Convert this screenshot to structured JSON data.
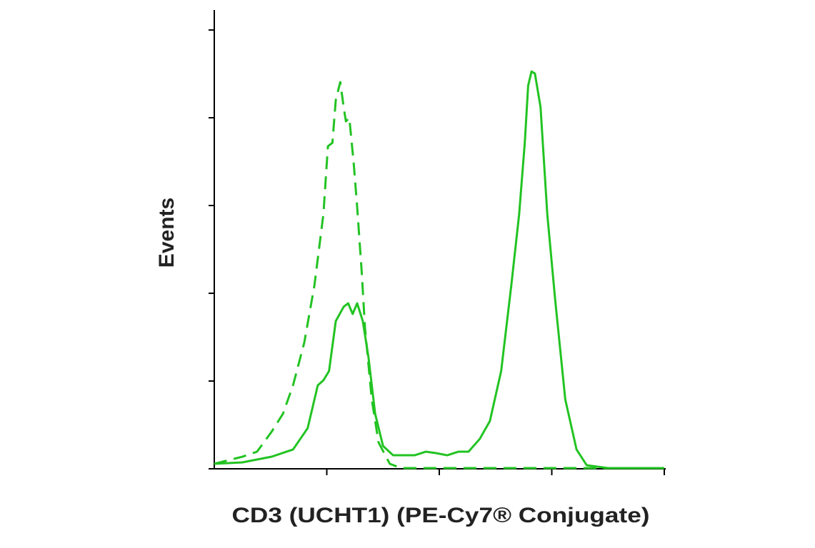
{
  "chart_data": {
    "type": "line",
    "xlabel": "CD3 (UCHT1) (PE-Cy7® Conjugate)",
    "ylabel": "Events",
    "xlim": [
      1,
      5
    ],
    "xticks": [
      2,
      3,
      4,
      5
    ],
    "ylim": [
      0,
      522
    ],
    "yticks": [
      0,
      100,
      200,
      300,
      400,
      500
    ],
    "series": [
      {
        "color": "#22c322",
        "dash": false,
        "x": [
          1.0,
          1.25,
          1.51,
          1.7,
          1.83,
          1.92,
          1.97,
          2.02,
          2.08,
          2.15,
          2.19,
          2.23,
          2.27,
          2.32,
          2.37,
          2.43,
          2.5,
          2.59,
          2.78,
          2.88,
          2.97,
          3.07,
          3.17,
          3.26,
          3.36,
          3.45,
          3.55,
          3.64,
          3.71,
          3.76,
          3.79,
          3.82,
          3.85,
          3.9,
          3.96,
          4.03,
          4.12,
          4.22,
          4.31,
          4.5,
          5.0
        ],
        "values": [
          5.7,
          7.3,
          13.8,
          22.0,
          46.3,
          95.1,
          100.8,
          111.4,
          168.3,
          184.6,
          188.6,
          176.4,
          188.6,
          168.3,
          127.6,
          62.6,
          26.0,
          15.4,
          15.4,
          19.5,
          17.9,
          15.4,
          19.5,
          19.5,
          34.1,
          54.5,
          111.4,
          208.9,
          290.2,
          371.5,
          436.6,
          452.8,
          450.4,
          412.2,
          290.2,
          192.7,
          78.9,
          22.0,
          4.1,
          0.8,
          0.8
        ]
      },
      {
        "color": "#22c322",
        "dash": true,
        "x": [
          1.0,
          1.25,
          1.38,
          1.51,
          1.61,
          1.7,
          1.8,
          1.89,
          1.97,
          2.01,
          2.05,
          2.08,
          2.12,
          2.15,
          2.17,
          2.2,
          2.24,
          2.27,
          2.31,
          2.34,
          2.37,
          2.4,
          2.46,
          2.56,
          2.66,
          5.0
        ],
        "values": [
          5.7,
          13.8,
          19.5,
          42.3,
          62.6,
          95.1,
          143.9,
          208.9,
          290.2,
          367.5,
          371.5,
          420.3,
          440.7,
          412.2,
          395.9,
          400.0,
          347.2,
          298.4,
          225.2,
          160.2,
          119.5,
          78.9,
          30.1,
          5.7,
          0.8,
          0.8
        ]
      }
    ]
  }
}
